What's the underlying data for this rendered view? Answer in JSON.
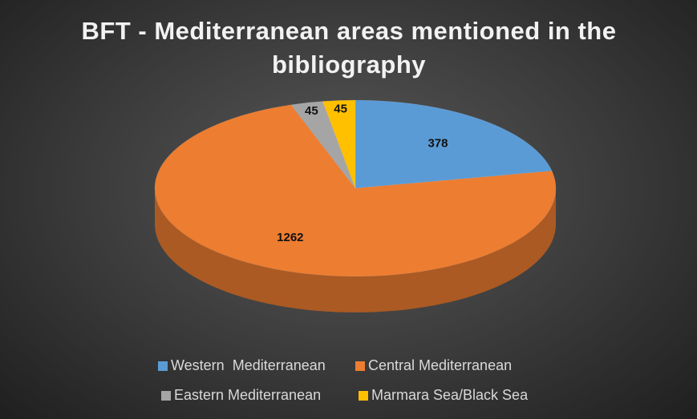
{
  "chart_data": {
    "type": "pie",
    "title": "BFT - Mediterranean areas mentioned in the bibliography",
    "categories": [
      "Western  Mediterranean",
      "Central Mediterranean",
      "Eastern Mediterranean",
      "Marmara Sea/Black Sea"
    ],
    "values": [
      378,
      1262,
      45,
      45
    ],
    "colors": [
      "#5b9bd5",
      "#ed7d31",
      "#a5a5a5",
      "#ffc000"
    ],
    "legend": "bottom"
  }
}
